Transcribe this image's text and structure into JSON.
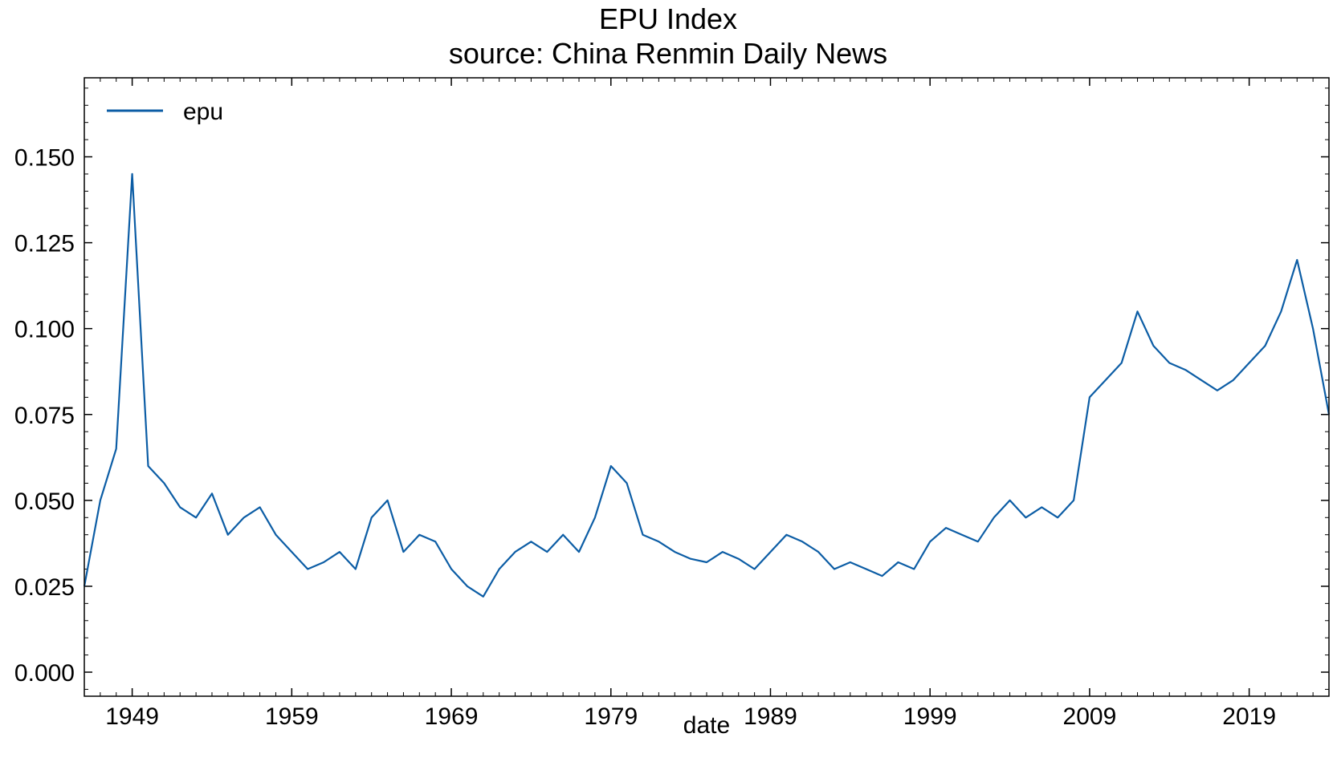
{
  "chart_data": {
    "type": "line",
    "title": "EPU Index",
    "subtitle": "source: China Renmin Daily News",
    "xlabel": "date",
    "ylabel": "",
    "xlim": [
      "1946-01",
      "2024-01"
    ],
    "ylim": [
      -0.007,
      0.173
    ],
    "x_ticks": [
      "1949",
      "1959",
      "1969",
      "1979",
      "1989",
      "1999",
      "2009",
      "2019"
    ],
    "y_ticks": [
      "0.000",
      "0.025",
      "0.050",
      "0.075",
      "0.100",
      "0.125",
      "0.150"
    ],
    "grid": false,
    "legend_position": "top-left",
    "colors": {
      "series": "#0c5da5",
      "axes": "#000000"
    },
    "x_points_per_year": "annual",
    "series": [
      {
        "name": "epu",
        "x": [
          "1946",
          "1947",
          "1948",
          "1949",
          "1950",
          "1951",
          "1952",
          "1953",
          "1954",
          "1955",
          "1956",
          "1957",
          "1958",
          "1959",
          "1960",
          "1961",
          "1962",
          "1963",
          "1964",
          "1965",
          "1966",
          "1967",
          "1968",
          "1969",
          "1970",
          "1971",
          "1972",
          "1973",
          "1974",
          "1975",
          "1976",
          "1977",
          "1978",
          "1979",
          "1980",
          "1981",
          "1982",
          "1983",
          "1984",
          "1985",
          "1986",
          "1987",
          "1988",
          "1989",
          "1990",
          "1991",
          "1992",
          "1993",
          "1994",
          "1995",
          "1996",
          "1997",
          "1998",
          "1999",
          "2000",
          "2001",
          "2002",
          "2003",
          "2004",
          "2005",
          "2006",
          "2007",
          "2008",
          "2009",
          "2010",
          "2011",
          "2012",
          "2013",
          "2014",
          "2015",
          "2016",
          "2017",
          "2018",
          "2019",
          "2020",
          "2021",
          "2022",
          "2023",
          "2024"
        ],
        "values": [
          0.025,
          0.05,
          0.065,
          0.145,
          0.06,
          0.055,
          0.048,
          0.045,
          0.052,
          0.04,
          0.045,
          0.048,
          0.04,
          0.035,
          0.03,
          0.032,
          0.035,
          0.03,
          0.045,
          0.05,
          0.035,
          0.04,
          0.038,
          0.03,
          0.025,
          0.022,
          0.03,
          0.035,
          0.038,
          0.035,
          0.04,
          0.035,
          0.045,
          0.06,
          0.055,
          0.04,
          0.038,
          0.035,
          0.033,
          0.032,
          0.035,
          0.033,
          0.03,
          0.035,
          0.04,
          0.038,
          0.035,
          0.03,
          0.032,
          0.03,
          0.028,
          0.032,
          0.03,
          0.038,
          0.042,
          0.04,
          0.038,
          0.045,
          0.05,
          0.045,
          0.048,
          0.045,
          0.05,
          0.08,
          0.085,
          0.09,
          0.105,
          0.095,
          0.09,
          0.088,
          0.085,
          0.082,
          0.085,
          0.09,
          0.095,
          0.105,
          0.12,
          0.1,
          0.075
        ]
      }
    ]
  }
}
